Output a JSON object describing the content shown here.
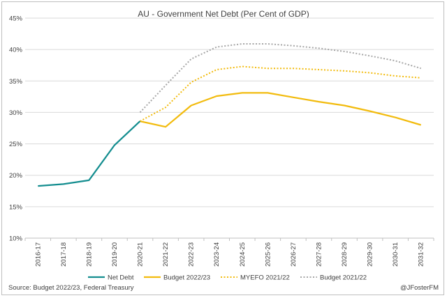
{
  "chart_data": {
    "type": "line",
    "title": "AU - Government Net Debt (Per Cent of GDP)",
    "xlabel": "",
    "ylabel": "",
    "ylim": [
      10,
      45
    ],
    "yticks": [
      10,
      15,
      20,
      25,
      30,
      35,
      40,
      45
    ],
    "ytick_suffix": "%",
    "grid": true,
    "legend_position": "bottom",
    "categories": [
      "2016-17",
      "2017-18",
      "2018-19",
      "2019-20",
      "2020-21",
      "2021-22",
      "2022-23",
      "2023-24",
      "2024-25",
      "2025-26",
      "2026-27",
      "2027-28",
      "2028-29",
      "2029-30",
      "2030-31",
      "2031-32"
    ],
    "series": [
      {
        "name": "Net Debt",
        "color": "#138d8f",
        "style": "solid",
        "values": [
          18.3,
          18.6,
          19.2,
          24.8,
          28.6,
          null,
          null,
          null,
          null,
          null,
          null,
          null,
          null,
          null,
          null,
          null
        ]
      },
      {
        "name": "Budget 2022/23",
        "color": "#f2bb0d",
        "style": "solid",
        "values": [
          null,
          null,
          null,
          null,
          28.6,
          27.7,
          31.1,
          32.6,
          33.1,
          33.1,
          32.4,
          31.7,
          31.1,
          30.2,
          29.2,
          28.0
        ]
      },
      {
        "name": "MYEFO 2021/22",
        "color": "#f2bb0d",
        "style": "dotted",
        "values": [
          null,
          null,
          null,
          null,
          28.6,
          30.8,
          34.8,
          36.8,
          37.3,
          37.0,
          37.0,
          36.8,
          36.6,
          36.3,
          35.8,
          35.5
        ]
      },
      {
        "name": "Budget 2021/22",
        "color": "#a6a6a6",
        "style": "dotted",
        "values": [
          null,
          null,
          null,
          null,
          30.0,
          34.3,
          38.5,
          40.4,
          40.9,
          40.9,
          40.6,
          40.2,
          39.7,
          39.0,
          38.2,
          37.0
        ]
      }
    ]
  },
  "footer": {
    "source": "Source: Budget 2022/23, Federal Treasury",
    "credit": "@JFosterFM"
  }
}
